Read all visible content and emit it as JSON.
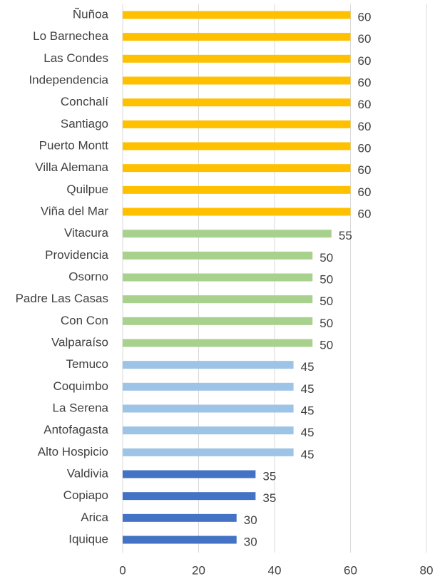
{
  "chart_data": {
    "type": "barh",
    "categories": [
      "Ñuñoa",
      "Lo Barnechea",
      "Las Condes",
      "Independencia",
      "Conchalí",
      "Santiago",
      "Puerto Montt",
      "Villa Alemana",
      "Quilpue",
      "Viña del Mar",
      "Vitacura",
      "Providencia",
      "Osorno",
      "Padre Las Casas",
      "Con Con",
      "Valparaíso",
      "Temuco",
      "Coquimbo",
      "La Serena",
      "Antofagasta",
      "Alto Hospicio",
      "Valdivia",
      "Copiapo",
      "Arica",
      "Iquique"
    ],
    "values": [
      60,
      60,
      60,
      60,
      60,
      60,
      60,
      60,
      60,
      60,
      55,
      50,
      50,
      50,
      50,
      50,
      45,
      45,
      45,
      45,
      45,
      35,
      35,
      30,
      30
    ],
    "colors": [
      "#ffc000",
      "#ffc000",
      "#ffc000",
      "#ffc000",
      "#ffc000",
      "#ffc000",
      "#ffc000",
      "#ffc000",
      "#ffc000",
      "#ffc000",
      "#a9d18e",
      "#a9d18e",
      "#a9d18e",
      "#a9d18e",
      "#a9d18e",
      "#a9d18e",
      "#9dc3e6",
      "#9dc3e6",
      "#9dc3e6",
      "#9dc3e6",
      "#9dc3e6",
      "#4472c4",
      "#4472c4",
      "#4472c4",
      "#4472c4"
    ],
    "xlim": [
      0,
      80
    ],
    "xticks": [
      0,
      20,
      40,
      60,
      80
    ],
    "grid": true
  }
}
